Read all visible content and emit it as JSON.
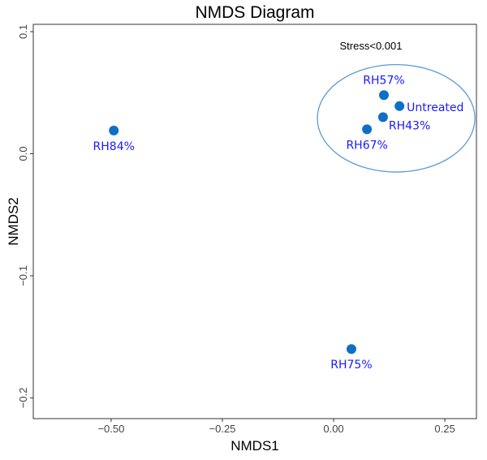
{
  "chart_data": {
    "type": "scatter",
    "title": "NMDS Diagram",
    "xlabel": "NMDS1",
    "ylabel": "NMDS2",
    "xlim": [
      -0.675,
      0.321
    ],
    "ylim": [
      -0.217,
      0.106
    ],
    "grid": false,
    "x_ticks": [
      {
        "value": -0.5,
        "label": "−0.50"
      },
      {
        "value": -0.25,
        "label": "−0.25"
      },
      {
        "value": 0,
        "label": "0.00"
      },
      {
        "value": 0.25,
        "label": "0.25"
      }
    ],
    "y_ticks": [
      {
        "value": 0.1,
        "label": "0.1"
      },
      {
        "value": 0,
        "label": "0.0"
      },
      {
        "value": -0.1,
        "label": "−0.1"
      },
      {
        "value": -0.2,
        "label": "−0.2"
      }
    ],
    "annotation": "Stress<0.001",
    "points": [
      {
        "label": "RH84%",
        "x": -0.494,
        "y": 0.019,
        "label_pos": "below"
      },
      {
        "label": "RH57%",
        "x": 0.113,
        "y": 0.048,
        "label_pos": "above"
      },
      {
        "label": "Untreated",
        "x": 0.148,
        "y": 0.039,
        "label_pos": "right"
      },
      {
        "label": "RH43%",
        "x": 0.111,
        "y": 0.03,
        "label_pos": "below-right"
      },
      {
        "label": "RH67%",
        "x": 0.075,
        "y": 0.02,
        "label_pos": "below"
      },
      {
        "label": "RH75%",
        "x": 0.04,
        "y": -0.16,
        "label_pos": "below"
      }
    ],
    "ellipse": {
      "cx": 0.1405,
      "cy": 0.029,
      "rx": 0.177,
      "ry": 0.044
    },
    "colors": {
      "point": "#0f6fc6",
      "label": "#1a1aff",
      "ellipse": "#5b9bd5",
      "axis": "#333333"
    }
  }
}
